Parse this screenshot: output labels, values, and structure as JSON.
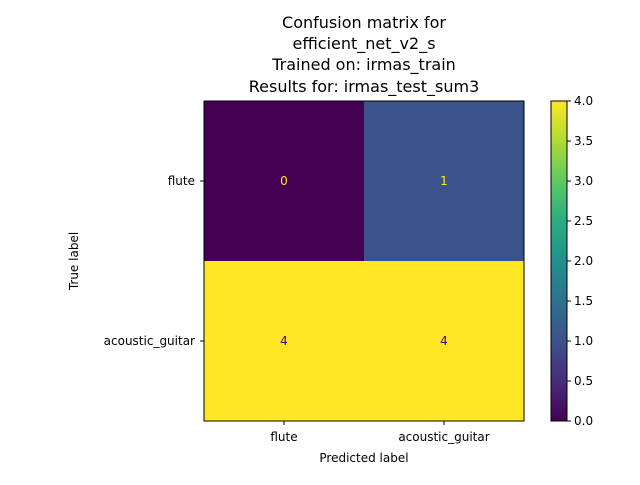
{
  "chart_data": {
    "type": "heatmap",
    "title_lines": [
      "Confusion matrix for",
      "efficient_net_v2_s",
      "Trained on: irmas_train",
      "Results for: irmas_test_sum3"
    ],
    "xlabel": "Predicted label",
    "ylabel": "True label",
    "x_categories": [
      "flute",
      "acoustic_guitar"
    ],
    "y_categories": [
      "flute",
      "acoustic_guitar"
    ],
    "matrix": [
      [
        0,
        1
      ],
      [
        4,
        4
      ]
    ],
    "cell_labels": [
      [
        "0",
        "1"
      ],
      [
        "4",
        "4"
      ]
    ],
    "colorbar": {
      "min": 0.0,
      "max": 4.0,
      "ticks": [
        "0.0",
        "0.5",
        "1.0",
        "1.5",
        "2.0",
        "2.5",
        "3.0",
        "3.5",
        "4.0"
      ],
      "colormap": "viridis"
    },
    "colors": {
      "min": "#440154",
      "max": "#fde725",
      "text_on_dark": "#fde725",
      "text_on_light": "#440154"
    }
  }
}
